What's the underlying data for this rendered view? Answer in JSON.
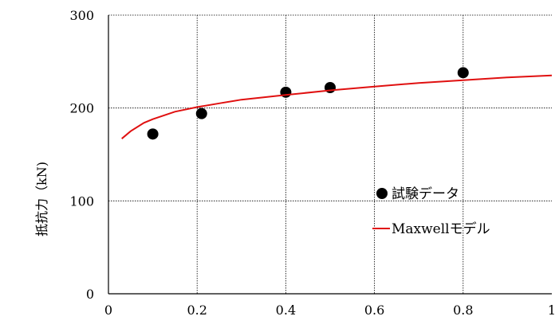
{
  "chart_data": {
    "type": "scatter",
    "title": "",
    "xlabel": "",
    "ylabel": "抵抗力（kN)",
    "xlim": [
      0,
      1
    ],
    "ylim": [
      0,
      300
    ],
    "x_ticks": [
      "0",
      "0.2",
      "0.4",
      "0.6",
      "0.8",
      "1"
    ],
    "y_ticks": [
      "0",
      "100",
      "200",
      "300"
    ],
    "grid": true,
    "legend": {
      "placement": "bottom-right",
      "entries": [
        "試験データ",
        "Maxwellモデル"
      ]
    },
    "series": [
      {
        "name": "試験データ",
        "kind": "scatter",
        "color": "#000000",
        "x": [
          0.1,
          0.21,
          0.4,
          0.5,
          0.8
        ],
        "y": [
          172,
          194,
          217,
          222,
          238
        ]
      },
      {
        "name": "Maxwellモデル",
        "kind": "line",
        "color": "#e01010",
        "x": [
          0.03,
          0.05,
          0.08,
          0.1,
          0.15,
          0.2,
          0.25,
          0.3,
          0.4,
          0.5,
          0.6,
          0.7,
          0.8,
          0.9,
          1.0
        ],
        "y": [
          167,
          175,
          184,
          188,
          196,
          201,
          205,
          209,
          214,
          219,
          223,
          227,
          230,
          233,
          235
        ]
      }
    ]
  }
}
